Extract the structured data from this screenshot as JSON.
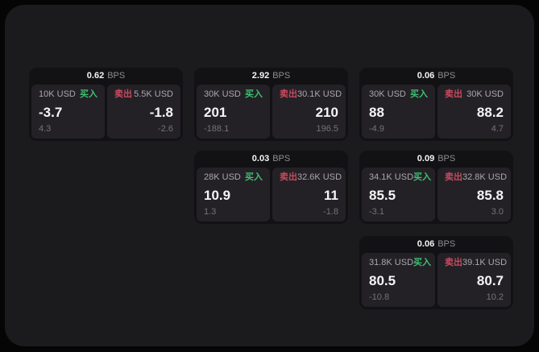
{
  "labels": {
    "buy": "买入",
    "sell": "卖出",
    "bps_unit": "BPS"
  },
  "colors": {
    "page_bg": "#050506",
    "panel_bg": "#1b1a1c",
    "card_bg": "#121114",
    "pane_bg": "#232126",
    "value_white": "#f5f5f6",
    "label_gray": "#a9a8ac",
    "muted_gray": "#747378",
    "bps_unit_gray": "#8e8d91",
    "buy_green": "#3fbf72",
    "sell_red": "#c94a5e"
  },
  "cards": [
    {
      "bps": "0.62",
      "buy_amount": "10K USD",
      "buy_value": "-3.7",
      "buy_delta": "4.3",
      "sell_amount": "5.5K USD",
      "sell_value": "-1.8",
      "sell_delta": "-2.6"
    },
    {
      "bps": "2.92",
      "buy_amount": "30K USD",
      "buy_value": "201",
      "buy_delta": "-188.1",
      "sell_amount": "30.1K USD",
      "sell_value": "210",
      "sell_delta": "196.5"
    },
    {
      "bps": "0.06",
      "buy_amount": "30K USD",
      "buy_value": "88",
      "buy_delta": "-4.9",
      "sell_amount": "30K USD",
      "sell_value": "88.2",
      "sell_delta": "4.7"
    },
    {
      "bps": "0.03",
      "buy_amount": "28K USD",
      "buy_value": "10.9",
      "buy_delta": "1.3",
      "sell_amount": "32.6K USD",
      "sell_value": "11",
      "sell_delta": "-1.8"
    },
    {
      "bps": "0.09",
      "buy_amount": "34.1K USD",
      "buy_value": "85.5",
      "buy_delta": "-3.1",
      "sell_amount": "32.8K USD",
      "sell_value": "85.8",
      "sell_delta": "3.0"
    },
    {
      "bps": "0.06",
      "buy_amount": "31.8K USD",
      "buy_value": "80.5",
      "buy_delta": "-10.8",
      "sell_amount": "39.1K USD",
      "sell_value": "80.7",
      "sell_delta": "10.2"
    }
  ]
}
